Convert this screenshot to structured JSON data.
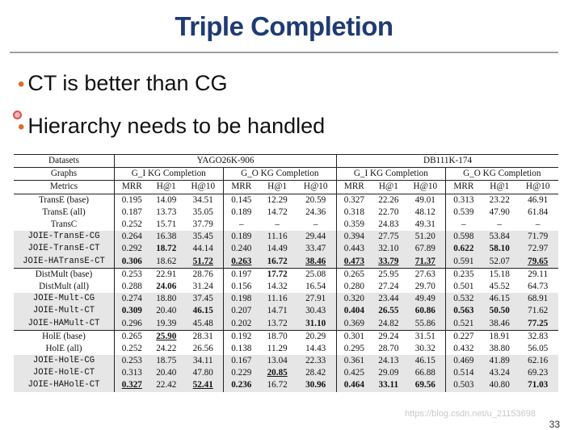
{
  "title": "Triple Completion",
  "bullets": [
    "CT is better than CG",
    "Hierarchy needs to be handled"
  ],
  "table": {
    "datasets_label": "Datasets",
    "graphs_label": "Graphs",
    "metrics_label": "Metrics",
    "datasets": [
      "YAGO26K-906",
      "DB111K-174"
    ],
    "graphs": [
      "G_I KG Completion",
      "G_O KG Completion",
      "G_I KG Completion",
      "G_O KG Completion"
    ],
    "metrics": [
      "MRR",
      "H@1",
      "H@10",
      "MRR",
      "H@1",
      "H@10",
      "MRR",
      "H@1",
      "H@10",
      "MRR",
      "H@1",
      "H@10"
    ],
    "rows": [
      {
        "name": "TransE (base)",
        "mono": false,
        "group": 0,
        "shade": false,
        "cells": [
          "0.195",
          "14.09",
          "34.51",
          "0.145",
          "12.29",
          "20.59",
          "0.327",
          "22.26",
          "49.01",
          "0.313",
          "23.22",
          "46.91"
        ]
      },
      {
        "name": "TransE (all)",
        "mono": false,
        "group": 0,
        "shade": false,
        "cells": [
          "0.187",
          "13.73",
          "35.05",
          "0.189",
          "14.72",
          "24.36",
          "0.318",
          "22.70",
          "48.12",
          "0.539",
          "47.90",
          "61.84"
        ]
      },
      {
        "name": "TransC",
        "mono": false,
        "group": 0,
        "shade": false,
        "cells": [
          "0.252",
          "15.71",
          "37.79",
          "–",
          "–",
          "–",
          "0.359",
          "24.83",
          "49.31",
          "–",
          "–",
          "–"
        ]
      },
      {
        "name": "JOIE-TransE-CG",
        "mono": true,
        "group": 0,
        "shade": true,
        "cells": [
          "0.264",
          "16.38",
          "35.45",
          "0.189",
          "11.16",
          "29.44",
          "0.394",
          "27.75",
          "51.20",
          "0.598",
          "53.84",
          "71.79"
        ]
      },
      {
        "name": "JOIE-TransE-CT",
        "mono": true,
        "group": 0,
        "shade": true,
        "cells": [
          "0.292",
          "18.72",
          "44.14",
          "0.240",
          "14.49",
          "33.47",
          "0.443",
          "32.10",
          "67.89",
          "0.622",
          "58.10",
          "72.97"
        ]
      },
      {
        "name": "JOIE-HATransE-CT",
        "mono": true,
        "group": 0,
        "shade": true,
        "cells": [
          "0.306",
          "18.62",
          "51.72",
          "0.263",
          "16.72",
          "38.46",
          "0.473",
          "33.79",
          "71.37",
          "0.591",
          "52.07",
          "79.65"
        ]
      },
      {
        "name": "DistMult (base)",
        "mono": false,
        "group": 1,
        "shade": false,
        "cells": [
          "0.253",
          "22.91",
          "28.76",
          "0.197",
          "17.72",
          "25.08",
          "0.265",
          "25.95",
          "27.63",
          "0.235",
          "15.18",
          "29.11"
        ]
      },
      {
        "name": "DistMult (all)",
        "mono": false,
        "group": 1,
        "shade": false,
        "cells": [
          "0.288",
          "24.06",
          "31.24",
          "0.156",
          "14.32",
          "16.54",
          "0.280",
          "27.24",
          "29.70",
          "0.501",
          "45.52",
          "64.73"
        ]
      },
      {
        "name": "JOIE-Mult-CG",
        "mono": true,
        "group": 1,
        "shade": true,
        "cells": [
          "0.274",
          "18.80",
          "37.45",
          "0.198",
          "11.16",
          "27.91",
          "0.320",
          "23.44",
          "49.49",
          "0.532",
          "46.15",
          "68.91"
        ]
      },
      {
        "name": "JOIE-Mult-CT",
        "mono": true,
        "group": 1,
        "shade": true,
        "cells": [
          "0.309",
          "20.40",
          "46.15",
          "0.207",
          "14.71",
          "30.43",
          "0.404",
          "26.55",
          "60.86",
          "0.563",
          "50.50",
          "71.62"
        ]
      },
      {
        "name": "JOIE-HAMult-CT",
        "mono": true,
        "group": 1,
        "shade": true,
        "cells": [
          "0.296",
          "19.39",
          "45.48",
          "0.202",
          "13.72",
          "31.10",
          "0.369",
          "24.82",
          "55.86",
          "0.521",
          "38.46",
          "77.25"
        ]
      },
      {
        "name": "HolE (base)",
        "mono": false,
        "group": 2,
        "shade": false,
        "cells": [
          "0.265",
          "25.90",
          "28.31",
          "0.192",
          "18.70",
          "20.29",
          "0.301",
          "29.24",
          "31.51",
          "0.227",
          "18.91",
          "32.83"
        ]
      },
      {
        "name": "HolE (all)",
        "mono": false,
        "group": 2,
        "shade": false,
        "cells": [
          "0.252",
          "24.22",
          "26.56",
          "0.138",
          "11.29",
          "14.43",
          "0.295",
          "28.70",
          "30.32",
          "0.432",
          "38.80",
          "56.05"
        ]
      },
      {
        "name": "JOIE-HolE-CG",
        "mono": true,
        "group": 2,
        "shade": true,
        "cells": [
          "0.253",
          "18.75",
          "34.11",
          "0.167",
          "13.04",
          "22.33",
          "0.361",
          "24.13",
          "46.15",
          "0.469",
          "41.89",
          "62.16"
        ]
      },
      {
        "name": "JOIE-HolE-CT",
        "mono": true,
        "group": 2,
        "shade": true,
        "cells": [
          "0.313",
          "20.40",
          "47.80",
          "0.229",
          "20.85",
          "28.42",
          "0.425",
          "29.09",
          "66.88",
          "0.514",
          "43.24",
          "69.23"
        ]
      },
      {
        "name": "JOIE-HAHolE-CT",
        "mono": true,
        "group": 2,
        "shade": true,
        "cells": [
          "0.327",
          "22.42",
          "52.41",
          "0.236",
          "16.72",
          "30.96",
          "0.464",
          "33.11",
          "69.56",
          "0.503",
          "40.80",
          "71.03"
        ]
      }
    ],
    "styles": {
      "4-1": "b",
      "4-9": "b",
      "4-10": "b",
      "5-0": "b",
      "5-2": "bu",
      "5-3": "bu",
      "5-4": "b",
      "5-5": "bu",
      "5-6": "bu",
      "5-7": "bu",
      "5-8": "bu",
      "5-11": "bu",
      "6-4": "b",
      "7-1": "b",
      "9-0": "b",
      "9-2": "b",
      "9-6": "b",
      "9-7": "b",
      "9-8": "b",
      "9-9": "b",
      "9-10": "b",
      "10-5": "b",
      "10-11": "b",
      "11-1": "bu",
      "14-4": "bu",
      "15-0": "bu",
      "15-2": "bu",
      "15-3": "b",
      "15-5": "b",
      "15-6": "b",
      "15-7": "b",
      "15-8": "b",
      "15-11": "b"
    }
  },
  "watermark": "https://blog.csdn.net/u_21153698",
  "page_number": "33"
}
